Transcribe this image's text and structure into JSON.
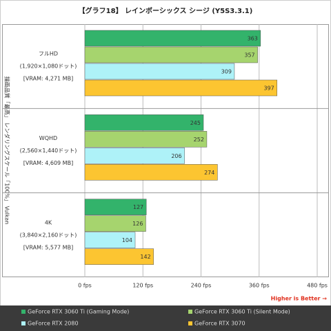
{
  "chart_data": {
    "type": "hbar",
    "title": "【グラフ18】 レインボーシックス シージ (Y5S3.3.1)",
    "y_axis_label": "描画品質「最高」 レンダリングスケール「100%」 Vulkan",
    "categories": [
      [
        "フルHD",
        "(1,920×1,080ドット)",
        "[VRAM: 4,271 MB]"
      ],
      [
        "WQHD",
        "(2,560×1,440ドット)",
        "[VRAM: 4,609 MB]"
      ],
      [
        "4K",
        "(3,840×2,160ドット)",
        "[VRAM: 5,577 MB]"
      ]
    ],
    "series": [
      {
        "name": "GeForce RTX 3060 Ti (Gaming Mode)",
        "color": "#33b36b",
        "values": [
          363,
          245,
          127
        ]
      },
      {
        "name": "GeForce RTX 3060 Ti (Silent Mode)",
        "color": "#a6d46e",
        "values": [
          357,
          252,
          126
        ]
      },
      {
        "name": "GeForce RTX 2080",
        "color": "#aef2f8",
        "values": [
          309,
          206,
          104
        ]
      },
      {
        "name": "GeForce RTX 3070",
        "color": "#fcc531",
        "values": [
          397,
          274,
          142
        ]
      }
    ],
    "xlim": [
      0,
      480
    ],
    "xticks": [
      {
        "value": 0,
        "label": "0 fps"
      },
      {
        "value": 120,
        "label": "120 fps"
      },
      {
        "value": 240,
        "label": "240 fps"
      },
      {
        "value": 360,
        "label": "360 fps"
      },
      {
        "value": 480,
        "label": "480 fps"
      }
    ],
    "grid": true,
    "annotation": "Higher is Better →"
  }
}
